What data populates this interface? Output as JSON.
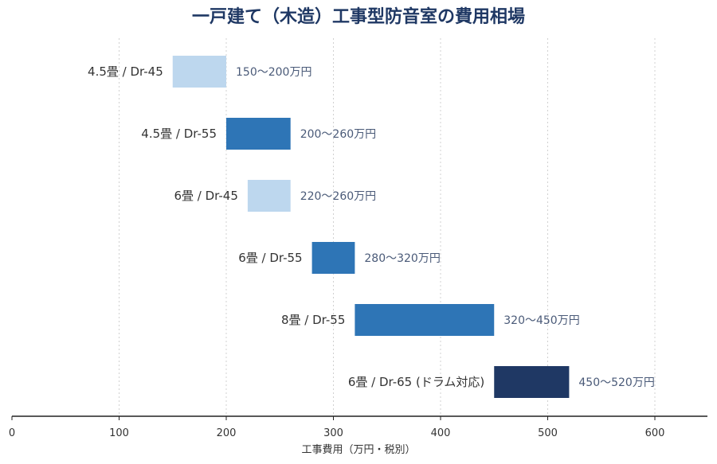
{
  "chart_data": {
    "type": "bar",
    "orientation": "horizontal-range",
    "title": "一戸建て（木造）工事型防音室の費用相場",
    "xlabel": "工事費用（万円・税別）",
    "ylabel": "",
    "xlim": [
      0,
      650
    ],
    "xticks": [
      0,
      100,
      200,
      300,
      400,
      500,
      600
    ],
    "grid": "vertical",
    "legend": "none",
    "bars": [
      {
        "category": "4.5畳 / Dr-45",
        "start": 150,
        "end": 200,
        "label": "150〜200万円",
        "color": "#bdd7ee"
      },
      {
        "category": "4.5畳 / Dr-55",
        "start": 200,
        "end": 260,
        "label": "200〜260万円",
        "color": "#2e75b6"
      },
      {
        "category": "6畳 / Dr-45",
        "start": 220,
        "end": 260,
        "label": "220〜260万円",
        "color": "#bdd7ee"
      },
      {
        "category": "6畳 / Dr-55",
        "start": 280,
        "end": 320,
        "label": "280〜320万円",
        "color": "#2e75b6"
      },
      {
        "category": "8畳 / Dr-55",
        "start": 320,
        "end": 450,
        "label": "320〜450万円",
        "color": "#2e75b6"
      },
      {
        "category": "6畳 / Dr-65 (ドラム対応)",
        "start": 450,
        "end": 520,
        "label": "450〜520万円",
        "color": "#1f3864"
      }
    ]
  }
}
